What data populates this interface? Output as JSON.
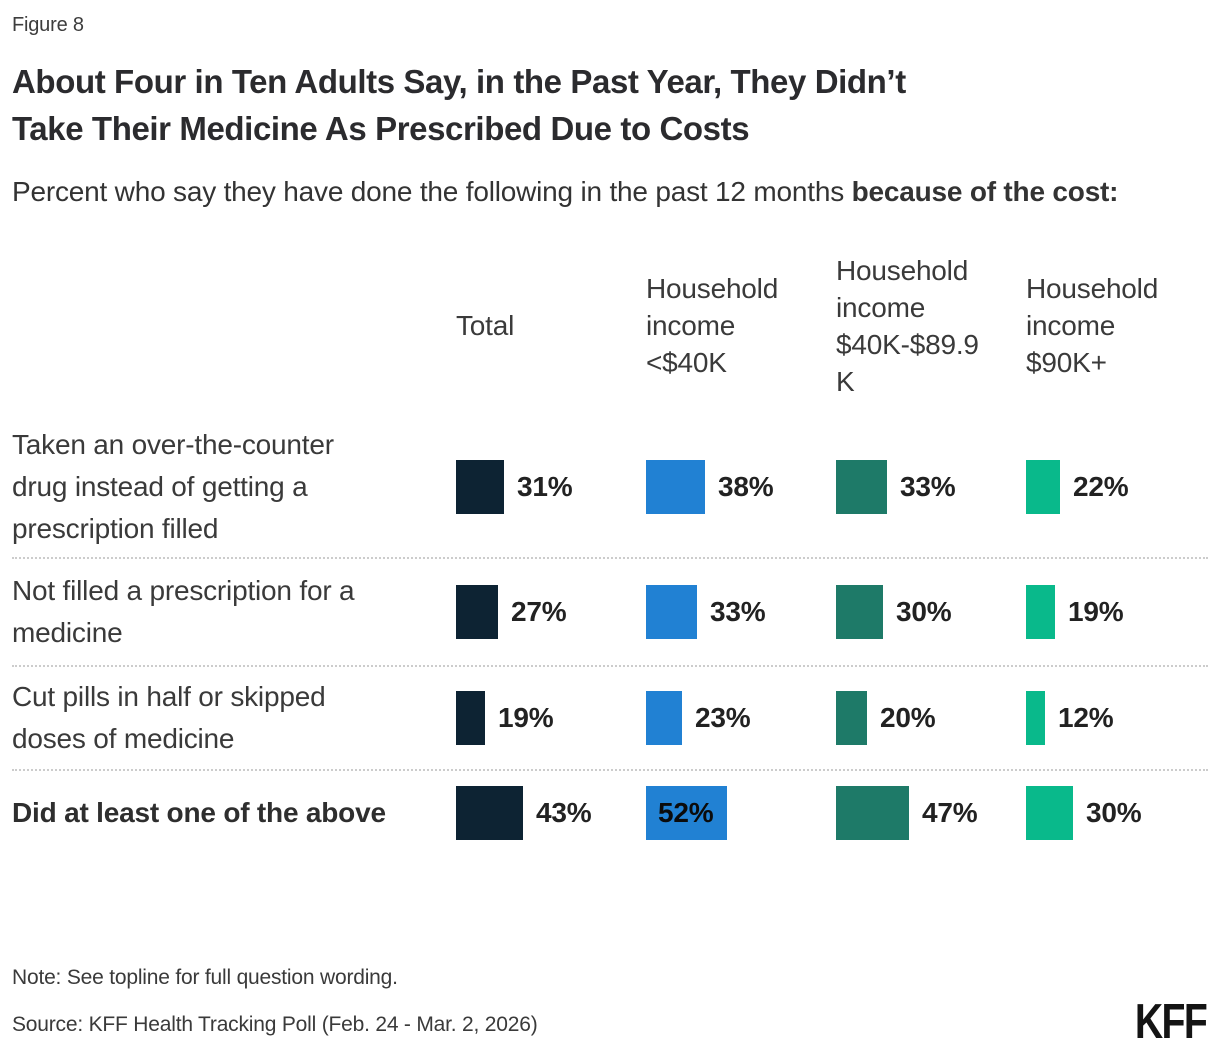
{
  "figure_label": "Figure 8",
  "title": "About Four in Ten Adults Say, in the Past Year, They Didn’t\nTake Their Medicine As Prescribed Due to Costs",
  "subtitle": {
    "regular": "Percent who say they have done the following in the past 12 months ",
    "bold": "because of the cost:"
  },
  "chart_data": {
    "type": "bar",
    "unit": "%",
    "title": "About Four in Ten Adults Say, in the Past Year, They Didn’t Take Their Medicine As Prescribed Due to Costs",
    "subtitle": "Percent who say they have done the following in the past 12 months because of the cost:",
    "orientation": "horizontal-small-multiples",
    "value_range": [
      0,
      100
    ],
    "columns": [
      {
        "label": "Total",
        "display_label": "Total",
        "color": "#0d2333"
      },
      {
        "label": "Household income <$40K",
        "display_label": "Household\nincome\n<$40K",
        "color": "#2181d3"
      },
      {
        "label": "Household income $40K-$89.9K",
        "display_label": "Household\nincome\n$40K-$89.9\nK",
        "color": "#1e7a68"
      },
      {
        "label": "Household income $90K+",
        "display_label": "Household\nincome\n$90K+",
        "color": "#09b98b"
      }
    ],
    "rows": [
      {
        "label": "Taken an over-the-counter drug instead of getting a prescription filled",
        "display_label": "Taken an over-the-counter\ndrug instead of getting a\nprescription filled",
        "bold": false,
        "values": [
          31,
          38,
          33,
          22
        ]
      },
      {
        "label": "Not filled a prescription for a medicine",
        "display_label": "Not filled a prescription for a\nmedicine",
        "bold": false,
        "values": [
          27,
          33,
          30,
          19
        ]
      },
      {
        "label": "Cut pills in half or skipped doses of medicine",
        "display_label": "Cut pills in half or skipped\ndoses of medicine",
        "bold": false,
        "values": [
          19,
          23,
          20,
          12
        ]
      },
      {
        "label": "Did at least one of the above",
        "display_label": "Did at least one of the above",
        "bold": true,
        "values": [
          43,
          52,
          47,
          30
        ]
      }
    ]
  },
  "note": "Note: See topline for full question wording.",
  "source": "Source: KFF Health Tracking Poll (Feb. 24 - Mar. 2, 2026)",
  "logo": "KFF"
}
